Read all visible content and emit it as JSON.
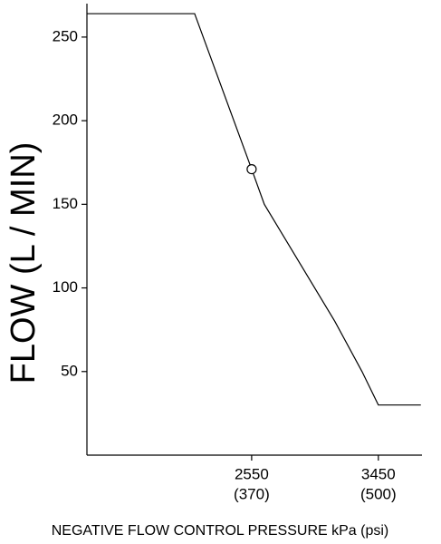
{
  "chart_data": {
    "type": "line",
    "x_label": "NEGATIVE FLOW CONTROL PRESSURE  kPa (psi)",
    "y_label": "FLOW (L / MIN)",
    "x": [
      1380,
      2145,
      2550,
      2640,
      3141,
      3334,
      3450,
      3752
    ],
    "series": [
      {
        "color": "#000000",
        "values": [
          264,
          264,
          171,
          150,
          80,
          50,
          30,
          30
        ]
      }
    ],
    "markers": [
      {
        "x": 2550,
        "y": 171
      }
    ],
    "xlim": [
      1380,
      3760
    ],
    "ylim": [
      0,
      270
    ],
    "xticks": [
      {
        "value": 2550,
        "label": "2550",
        "label_psi": "(370)"
      },
      {
        "value": 3450,
        "label": "3450",
        "label_psi": "(500)"
      }
    ],
    "yticks": [
      50,
      100,
      150,
      200,
      250
    ],
    "grid": false
  }
}
